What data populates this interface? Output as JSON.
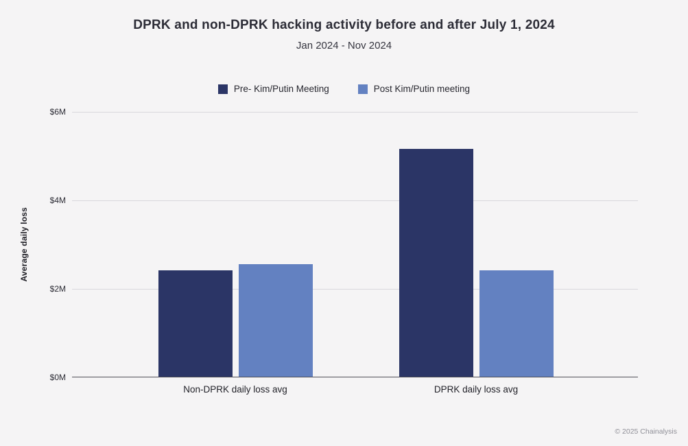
{
  "chart_data": {
    "type": "bar",
    "title": "DPRK and non-DPRK hacking activity before and after July 1, 2024",
    "subtitle": "Jan 2024 - Nov 2024",
    "ylabel": "Average daily loss",
    "ylim_millions": [
      0,
      6
    ],
    "ymax_m": 6,
    "ytick_labels_top_to_bottom": [
      "$6M",
      "$4M",
      "$2M",
      "$0M"
    ],
    "grid": true,
    "legend_position": "top-center",
    "categories": [
      "Non-DPRK daily loss avg",
      "DPRK daily loss avg"
    ],
    "series": [
      {
        "name": "Pre- Kim/Putin Meeting",
        "color": "#2b3566",
        "values_m": [
          2.4,
          5.15
        ]
      },
      {
        "name": "Post Kim/Putin meeting",
        "color": "#6381c1",
        "values_m": [
          2.55,
          2.4
        ]
      }
    ]
  },
  "footer": {
    "copyright": "© 2025 Chainalysis"
  }
}
